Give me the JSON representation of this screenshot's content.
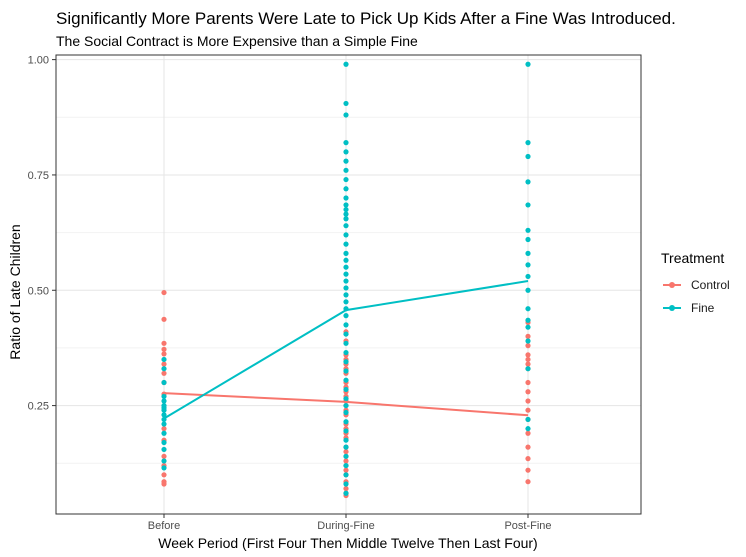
{
  "chart_data": {
    "type": "scatter",
    "title": "Significantly More Parents Were Late to Pick Up Kids After a Fine Was Introduced.",
    "subtitle": "The Social Contract is More Expensive than a Simple Fine",
    "xlabel": "Week Period (First Four Then Middle Twelve Then Last Four)",
    "ylabel": "Ratio of Late Children",
    "categories": [
      "Before",
      "During-Fine",
      "Post-Fine"
    ],
    "ylim": [
      0.015,
      1.01
    ],
    "yticks": [
      0.25,
      0.5,
      0.75,
      1.0
    ],
    "ytick_labels": [
      "0.25",
      "0.50",
      "0.75",
      "1.00"
    ],
    "grid": true,
    "legend_title": "Treatment",
    "legend_position": "right",
    "series": [
      {
        "name": "Control",
        "color": "#F8766D",
        "mean_line": [
          0.277,
          0.258,
          0.229
        ],
        "points": {
          "Before": [
            0.495,
            0.437,
            0.385,
            0.372,
            0.362,
            0.34,
            0.32,
            0.3,
            0.275,
            0.2,
            0.175,
            0.14,
            0.12,
            0.1,
            0.085,
            0.08
          ],
          "During-Fine": [
            0.41,
            0.39,
            0.36,
            0.35,
            0.34,
            0.33,
            0.32,
            0.3,
            0.29,
            0.28,
            0.27,
            0.26,
            0.25,
            0.24,
            0.235,
            0.23,
            0.21,
            0.2,
            0.19,
            0.18,
            0.16,
            0.15,
            0.14,
            0.13,
            0.12,
            0.11,
            0.1,
            0.085,
            0.07,
            0.06,
            0.055
          ],
          "Post-Fine": [
            0.43,
            0.4,
            0.38,
            0.36,
            0.35,
            0.34,
            0.33,
            0.3,
            0.28,
            0.26,
            0.24,
            0.22,
            0.19,
            0.16,
            0.135,
            0.11,
            0.085
          ]
        }
      },
      {
        "name": "Fine",
        "color": "#00BFC4",
        "mean_line": [
          0.222,
          0.457,
          0.52
        ],
        "points": {
          "Before": [
            0.35,
            0.33,
            0.3,
            0.27,
            0.26,
            0.25,
            0.245,
            0.24,
            0.23,
            0.22,
            0.21,
            0.19,
            0.17,
            0.155,
            0.13,
            0.115
          ],
          "During-Fine": [
            0.99,
            0.905,
            0.88,
            0.82,
            0.8,
            0.78,
            0.76,
            0.74,
            0.72,
            0.7,
            0.685,
            0.675,
            0.665,
            0.655,
            0.64,
            0.62,
            0.6,
            0.58,
            0.565,
            0.55,
            0.535,
            0.52,
            0.505,
            0.49,
            0.475,
            0.46,
            0.445,
            0.425,
            0.405,
            0.385,
            0.365,
            0.345,
            0.325,
            0.305,
            0.285,
            0.265,
            0.25,
            0.235,
            0.215,
            0.195,
            0.175,
            0.16,
            0.14,
            0.12,
            0.1,
            0.08,
            0.06
          ],
          "Post-Fine": [
            0.99,
            0.82,
            0.79,
            0.735,
            0.685,
            0.63,
            0.61,
            0.58,
            0.555,
            0.53,
            0.5,
            0.46,
            0.435,
            0.42,
            0.39,
            0.33,
            0.22,
            0.2
          ]
        }
      }
    ]
  }
}
